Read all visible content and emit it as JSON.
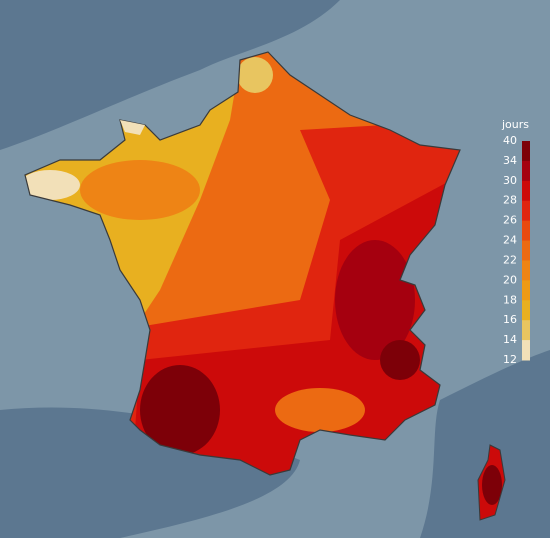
{
  "legend": {
    "title": "jours",
    "labels": [
      "40",
      "34",
      "30",
      "28",
      "26",
      "24",
      "22",
      "20",
      "18",
      "16",
      "14",
      "12"
    ],
    "colors": [
      "#7d0008",
      "#a5000f",
      "#cc0a0a",
      "#e0250f",
      "#e84a0f",
      "#ec6a12",
      "#ee8415",
      "#ee9a15",
      "#e8b020",
      "#e8c560",
      "#f2e0b8"
    ]
  }
}
